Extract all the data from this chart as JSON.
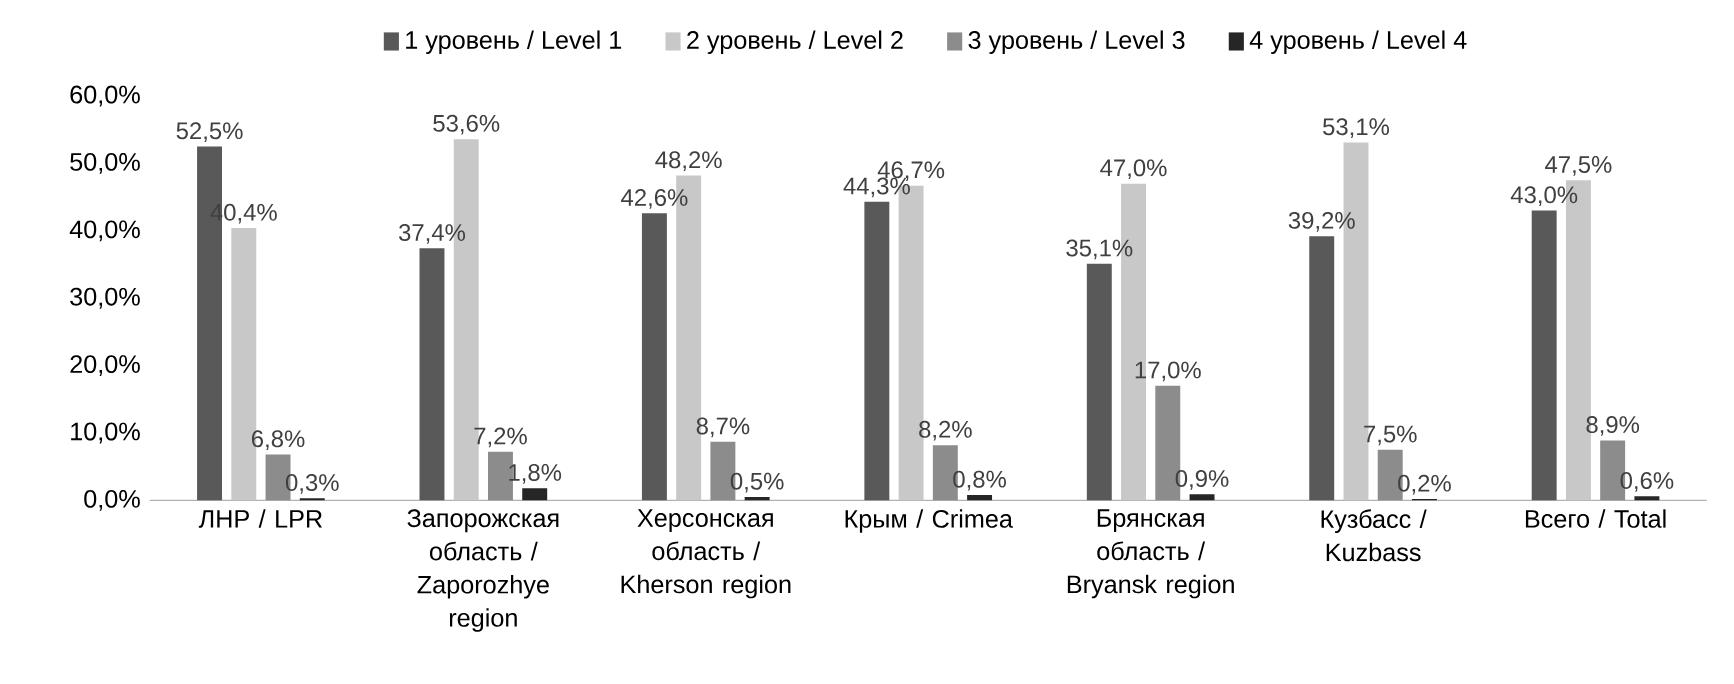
{
  "chart_data": {
    "type": "bar",
    "categories": [
      "ЛНР / LPR",
      "Запорожская область / Zaporozhye region",
      "Херсонская область / Kherson region",
      "Крым / Crimea",
      "Брянская область / Bryansk region",
      "Кузбасс / Kuzbass",
      "Всего / Total"
    ],
    "series": [
      {
        "name": "1 уровень / Level 1",
        "color": "#595959",
        "values": [
          52.5,
          37.4,
          42.6,
          44.3,
          35.1,
          39.2,
          43.0
        ],
        "value_labels": [
          "52,5%",
          "37,4%",
          "42,6%",
          "44,3%",
          "35,1%",
          "39,2%",
          "43,0%"
        ]
      },
      {
        "name": "2 уровень / Level 2",
        "color": "#c8c8c8",
        "values": [
          40.4,
          53.6,
          48.2,
          46.7,
          47.0,
          53.1,
          47.5
        ],
        "value_labels": [
          "40,4%",
          "53,6%",
          "48,2%",
          "46,7%",
          "47,0%",
          "53,1%",
          "47,5%"
        ]
      },
      {
        "name": "3 уровень / Level 3",
        "color": "#8c8c8c",
        "values": [
          6.8,
          7.2,
          8.7,
          8.2,
          17.0,
          7.5,
          8.9
        ],
        "value_labels": [
          "6,8%",
          "7,2%",
          "8,7%",
          "8,2%",
          "17,0%",
          "7,5%",
          "8,9%"
        ]
      },
      {
        "name": "4 уровень / Level 4",
        "color": "#262626",
        "values": [
          0.3,
          1.8,
          0.5,
          0.8,
          0.9,
          0.2,
          0.6
        ],
        "value_labels": [
          "0,3%",
          "1,8%",
          "0,5%",
          "0,8%",
          "0,9%",
          "0,2%",
          "0,6%"
        ]
      }
    ],
    "ylim": [
      0,
      60
    ],
    "yticks": [
      {
        "value": 0,
        "label": "0,0%"
      },
      {
        "value": 10,
        "label": "10,0%"
      },
      {
        "value": 20,
        "label": "20,0%"
      },
      {
        "value": 30,
        "label": "30,0%"
      },
      {
        "value": 40,
        "label": "40,0%"
      },
      {
        "value": 50,
        "label": "50,0%"
      },
      {
        "value": 60,
        "label": "60,0%"
      }
    ],
    "grid": false,
    "legend": "top"
  }
}
